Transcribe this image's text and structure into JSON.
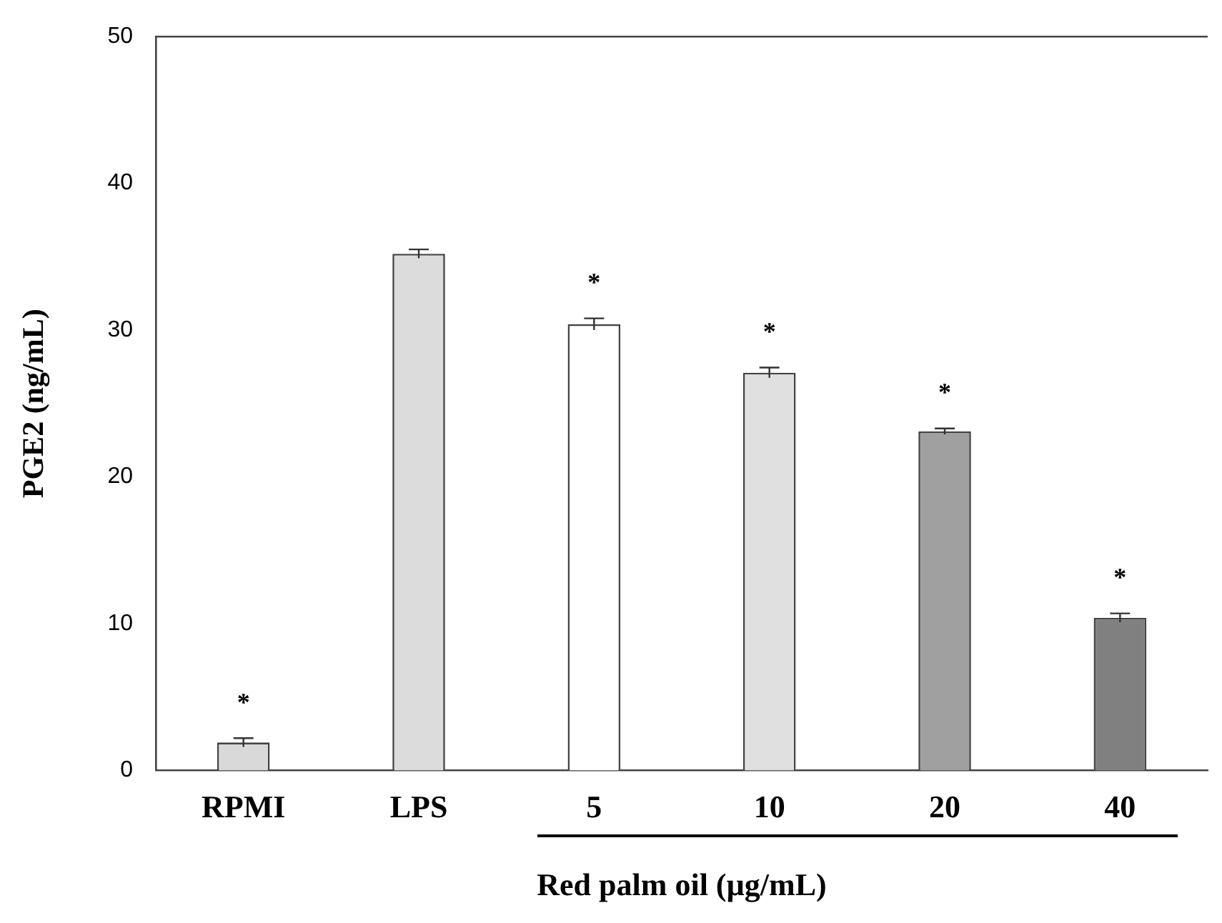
{
  "chart_data": {
    "type": "bar",
    "ylabel": "PGE2 (ng/mL)",
    "xlabel": "Red palm oil (µg/mL)",
    "categories": [
      "RPMI",
      "LPS",
      "5",
      "10",
      "20",
      "40"
    ],
    "values": [
      1.9,
      35.2,
      30.4,
      27.1,
      23.1,
      10.4
    ],
    "errors": [
      0.3,
      0.3,
      0.4,
      0.35,
      0.2,
      0.3
    ],
    "colors": [
      "#d9d9d9",
      "#dcdcdc",
      "#ffffff",
      "#e0e0e0",
      "#a0a0a0",
      "#808080"
    ],
    "ylim": [
      0,
      50
    ],
    "yticks": [
      0,
      10,
      20,
      30,
      40,
      50
    ],
    "grid": false,
    "annotations": [
      {
        "text": "*",
        "x": "RPMI",
        "y": 1.9
      },
      {
        "text": "*",
        "x": "5",
        "y": 30.4
      },
      {
        "text": "*",
        "x": "10",
        "y": 27.1
      },
      {
        "text": "*",
        "x": "20",
        "y": 23.1
      },
      {
        "text": "*",
        "x": "40",
        "y": 10.4
      }
    ]
  }
}
